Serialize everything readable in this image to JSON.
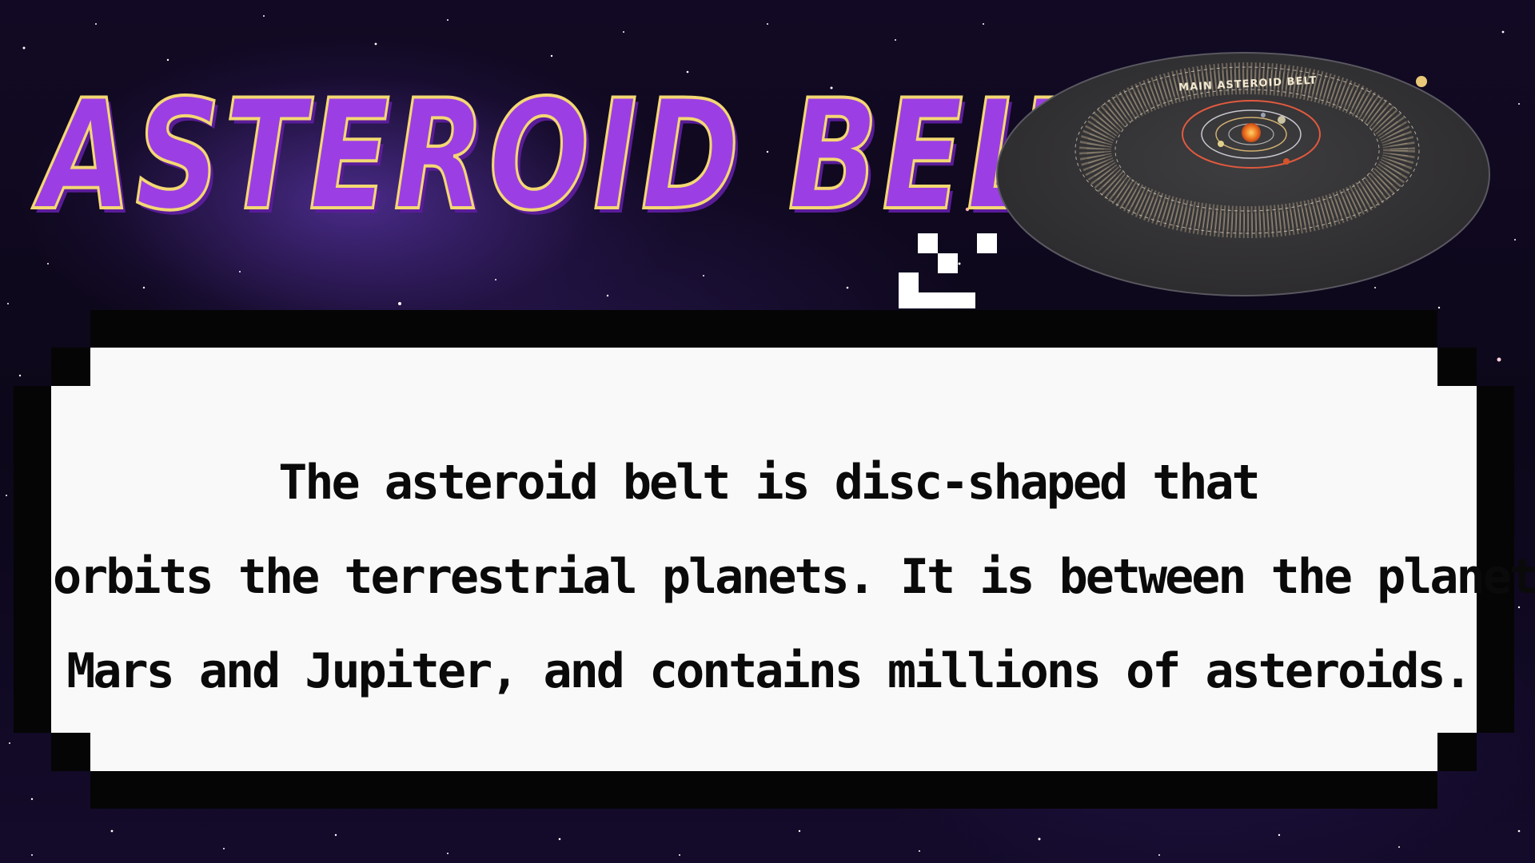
{
  "title": "ASTEROID BELT",
  "diagram": {
    "label": "MAIN ASTEROID BELT"
  },
  "body_text": {
    "line1": "The asteroid belt is disc-shaped that",
    "line2": "orbits the terrestrial planets. It is between the planets,",
    "line3": "Mars and Jupiter, and contains millions of asteroids."
  },
  "colors": {
    "title_fill": "#9b3fe4",
    "title_outline": "#f3d873",
    "box_bg": "#f9f9f9",
    "box_border": "#050505"
  }
}
